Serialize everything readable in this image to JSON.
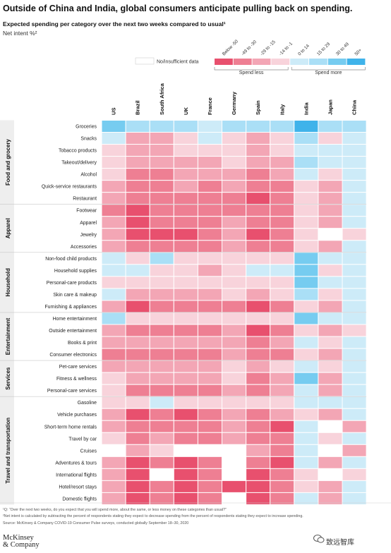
{
  "title": "Outside of China and India, global consumers anticipate pulling back on spending.",
  "subtitle": "Expected spending per category over the next two weeks compared to usual¹",
  "units": "Net intent %²",
  "footnotes": {
    "note1": "¹Q: “Over the next two weeks, do you expect that you will spend more, about the same, or less money on these categories than usual?”",
    "note2": "²Net intent is calculated by subtracting the percent of respondents stating they expect to decrease spending from the percent of respondents stating they expect to increase spending.",
    "source": "Source: McKinsey & Company COVID-19 Consumer Pulse surveys, conducted globally September 18–30, 2020"
  },
  "logo": {
    "line1": "McKinsey",
    "line2": "& Company"
  },
  "watermark": "致远智库",
  "chart_data": {
    "type": "heatmap",
    "title": "Outside of China and India, global consumers anticipate pulling back on spending.",
    "xlabel": "",
    "ylabel": "",
    "legend": {
      "na_label": "No/insufficient data",
      "bins": [
        {
          "label": "Below -50",
          "color": "#e8506e"
        },
        {
          "label": "-49 to -30",
          "color": "#ee7f93"
        },
        {
          "label": "-29 to -15",
          "color": "#f3a6b5"
        },
        {
          "label": "-14 to -1",
          "color": "#f8d3db"
        },
        {
          "label": "0 to 14",
          "color": "#cdebf8"
        },
        {
          "label": "15 to 29",
          "color": "#aadff6"
        },
        {
          "label": "30 to 49",
          "color": "#76ccf0"
        },
        {
          "label": "50+",
          "color": "#3fb3ea"
        }
      ],
      "spend_less": "Spend less",
      "spend_more": "Spend more",
      "na_color": "#ffffff"
    },
    "countries": [
      "US",
      "Brazil",
      "South Africa",
      "UK",
      "France",
      "Germany",
      "Spain",
      "Italy",
      "India",
      "Japan",
      "China"
    ],
    "groups": [
      {
        "name": "Food and grocery",
        "count": 7
      },
      {
        "name": "Apparel",
        "count": 4
      },
      {
        "name": "Household",
        "count": 5
      },
      {
        "name": "Entertainment",
        "count": 4
      },
      {
        "name": "Services",
        "count": 3
      },
      {
        "name": "Travel and transportation",
        "count": 9
      }
    ],
    "categories": [
      "Groceries",
      "Snacks",
      "Tobacco products",
      "Takeout/delivery",
      "Alcohol",
      "Quick-service restaurants",
      "Restaurant",
      "Footwear",
      "Apparel",
      "Jewelry",
      "Accessories",
      "Non-food child products",
      "Household supplies",
      "Personal-care products",
      "Skin care & makeup",
      "Furnishing & appliances",
      "Home entertainment",
      "Outside entertainment",
      "Books & print",
      "Consumer electronics",
      "Pet-care services",
      "Fitness & wellness",
      "Personal-care services",
      "Gasoline",
      "Vehicle purchases",
      "Short-term home rentals",
      "Travel by car",
      "Cruises",
      "Adventures & tours",
      "International flights",
      "Hotel/resort stays",
      "Domestic flights"
    ],
    "value_bins_note": "Cell values are the legend bin index: 0=Below -50 ... 7=50+, null=No/insufficient data",
    "values": [
      [
        6,
        5,
        5,
        5,
        4,
        5,
        5,
        5,
        7,
        5,
        5
      ],
      [
        4,
        2,
        2,
        3,
        4,
        3,
        2,
        3,
        5,
        3,
        4
      ],
      [
        3,
        2,
        2,
        3,
        3,
        3,
        2,
        3,
        4,
        4,
        4
      ],
      [
        3,
        2,
        2,
        2,
        2,
        3,
        2,
        2,
        5,
        4,
        4
      ],
      [
        3,
        1,
        1,
        2,
        2,
        2,
        1,
        2,
        4,
        3,
        4
      ],
      [
        2,
        1,
        1,
        2,
        1,
        2,
        1,
        1,
        3,
        2,
        4
      ],
      [
        2,
        1,
        1,
        1,
        1,
        1,
        0,
        1,
        3,
        2,
        4
      ],
      [
        1,
        0,
        1,
        1,
        1,
        1,
        1,
        1,
        3,
        2,
        4
      ],
      [
        2,
        0,
        1,
        1,
        1,
        2,
        1,
        1,
        3,
        2,
        4
      ],
      [
        2,
        0,
        0,
        0,
        1,
        2,
        0,
        1,
        3,
        null,
        3
      ],
      [
        2,
        1,
        1,
        1,
        1,
        2,
        1,
        1,
        3,
        2,
        4
      ],
      [
        4,
        3,
        5,
        3,
        3,
        3,
        3,
        3,
        6,
        4,
        4
      ],
      [
        4,
        4,
        3,
        3,
        2,
        3,
        4,
        4,
        6,
        3,
        4
      ],
      [
        3,
        3,
        3,
        3,
        3,
        3,
        3,
        3,
        6,
        4,
        4
      ],
      [
        4,
        2,
        2,
        2,
        2,
        3,
        2,
        3,
        5,
        3,
        4
      ],
      [
        2,
        0,
        1,
        1,
        1,
        1,
        0,
        1,
        3,
        2,
        4
      ],
      [
        5,
        3,
        3,
        3,
        3,
        3,
        3,
        3,
        6,
        4,
        4
      ],
      [
        2,
        1,
        1,
        1,
        1,
        2,
        0,
        1,
        3,
        2,
        3
      ],
      [
        2,
        2,
        2,
        2,
        2,
        2,
        1,
        2,
        4,
        3,
        4
      ],
      [
        1,
        1,
        1,
        1,
        1,
        2,
        1,
        1,
        3,
        2,
        4
      ],
      [
        2,
        2,
        2,
        2,
        2,
        3,
        2,
        3,
        4,
        3,
        4
      ],
      [
        3,
        2,
        2,
        2,
        2,
        3,
        1,
        2,
        6,
        2,
        4
      ],
      [
        3,
        1,
        1,
        1,
        1,
        2,
        1,
        2,
        4,
        2,
        4
      ],
      [
        3,
        3,
        4,
        3,
        3,
        3,
        3,
        3,
        4,
        4,
        4
      ],
      [
        2,
        0,
        1,
        0,
        1,
        2,
        1,
        2,
        3,
        2,
        4
      ],
      [
        2,
        1,
        1,
        1,
        1,
        2,
        1,
        0,
        4,
        null,
        2
      ],
      [
        3,
        1,
        2,
        1,
        1,
        2,
        1,
        1,
        4,
        3,
        4
      ],
      [
        null,
        2,
        3,
        null,
        null,
        null,
        2,
        1,
        4,
        null,
        2
      ],
      [
        2,
        0,
        1,
        0,
        1,
        null,
        1,
        0,
        4,
        2,
        4
      ],
      [
        2,
        0,
        null,
        0,
        1,
        null,
        0,
        1,
        3,
        null,
        3
      ],
      [
        2,
        0,
        1,
        0,
        1,
        0,
        0,
        1,
        3,
        2,
        4
      ],
      [
        2,
        0,
        1,
        0,
        1,
        null,
        0,
        1,
        4,
        2,
        4
      ]
    ]
  }
}
